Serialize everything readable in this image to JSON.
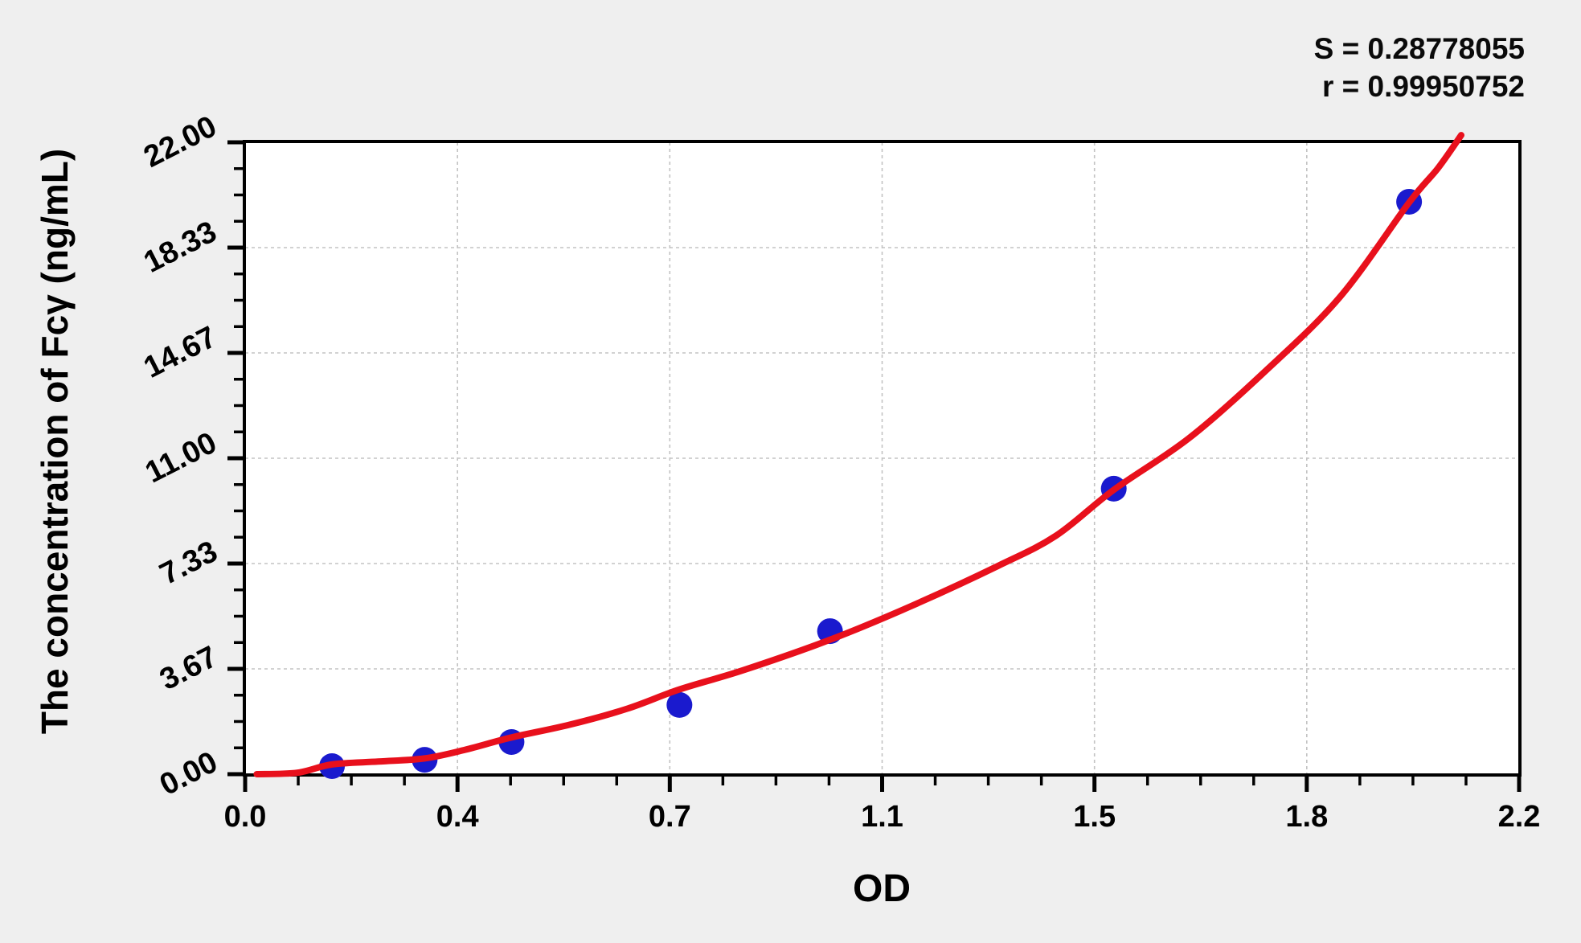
{
  "chart_data": {
    "type": "scatter",
    "title": "",
    "xlabel": "OD",
    "ylabel": "The concentration of Fcγ (ng/mL)",
    "xlim": [
      0,
      2.2
    ],
    "ylim": [
      0,
      22
    ],
    "x_tick_values": [
      0,
      0.3667,
      0.7333,
      1.1,
      1.4667,
      1.8333,
      2.2
    ],
    "x_tick_labels": [
      "0.0",
      "0.4",
      "0.7",
      "1.1",
      "1.5",
      "1.8",
      "2.2"
    ],
    "y_tick_values": [
      0,
      3.667,
      7.333,
      11,
      14.667,
      18.333,
      22
    ],
    "y_tick_labels": [
      "0.00",
      "3.67",
      "7.33",
      "11.00",
      "14.67",
      "18.33",
      "22.00"
    ],
    "minor_ticks_per_interval": 3,
    "grid": "dashed lines at major ticks",
    "legend": "none",
    "series": [
      {
        "name": "standard data points",
        "type": "scatter",
        "x": [
          0.15,
          0.31,
          0.46,
          0.75,
          1.01,
          1.5,
          2.01
        ],
        "y": [
          0.28,
          0.5,
          1.12,
          2.41,
          4.98,
          9.94,
          19.93
        ]
      },
      {
        "name": "fitted standard curve",
        "type": "line",
        "points": [
          [
            0.02,
            0.0
          ],
          [
            0.09,
            0.05
          ],
          [
            0.15,
            0.34
          ],
          [
            0.23,
            0.44
          ],
          [
            0.31,
            0.55
          ],
          [
            0.38,
            0.85
          ],
          [
            0.46,
            1.28
          ],
          [
            0.56,
            1.72
          ],
          [
            0.66,
            2.28
          ],
          [
            0.75,
            2.95
          ],
          [
            0.86,
            3.62
          ],
          [
            1.01,
            4.68
          ],
          [
            1.15,
            5.85
          ],
          [
            1.3,
            7.25
          ],
          [
            1.4,
            8.3
          ],
          [
            1.5,
            9.9
          ],
          [
            1.63,
            11.7
          ],
          [
            1.76,
            14.0
          ],
          [
            1.89,
            16.6
          ],
          [
            2.01,
            19.9
          ],
          [
            2.06,
            21.1
          ],
          [
            2.1,
            22.25
          ]
        ]
      }
    ],
    "annotations": {
      "s": "S = 0.28778055",
      "r": "r = 0.99950752"
    },
    "colors": {
      "point": "#1a1ace",
      "curve": "#e8101c",
      "grid": "#c3c3c3",
      "axis": "#000000",
      "text": "#000000",
      "plot_bg": "#ffffff",
      "page_bg": "#efefef"
    }
  }
}
